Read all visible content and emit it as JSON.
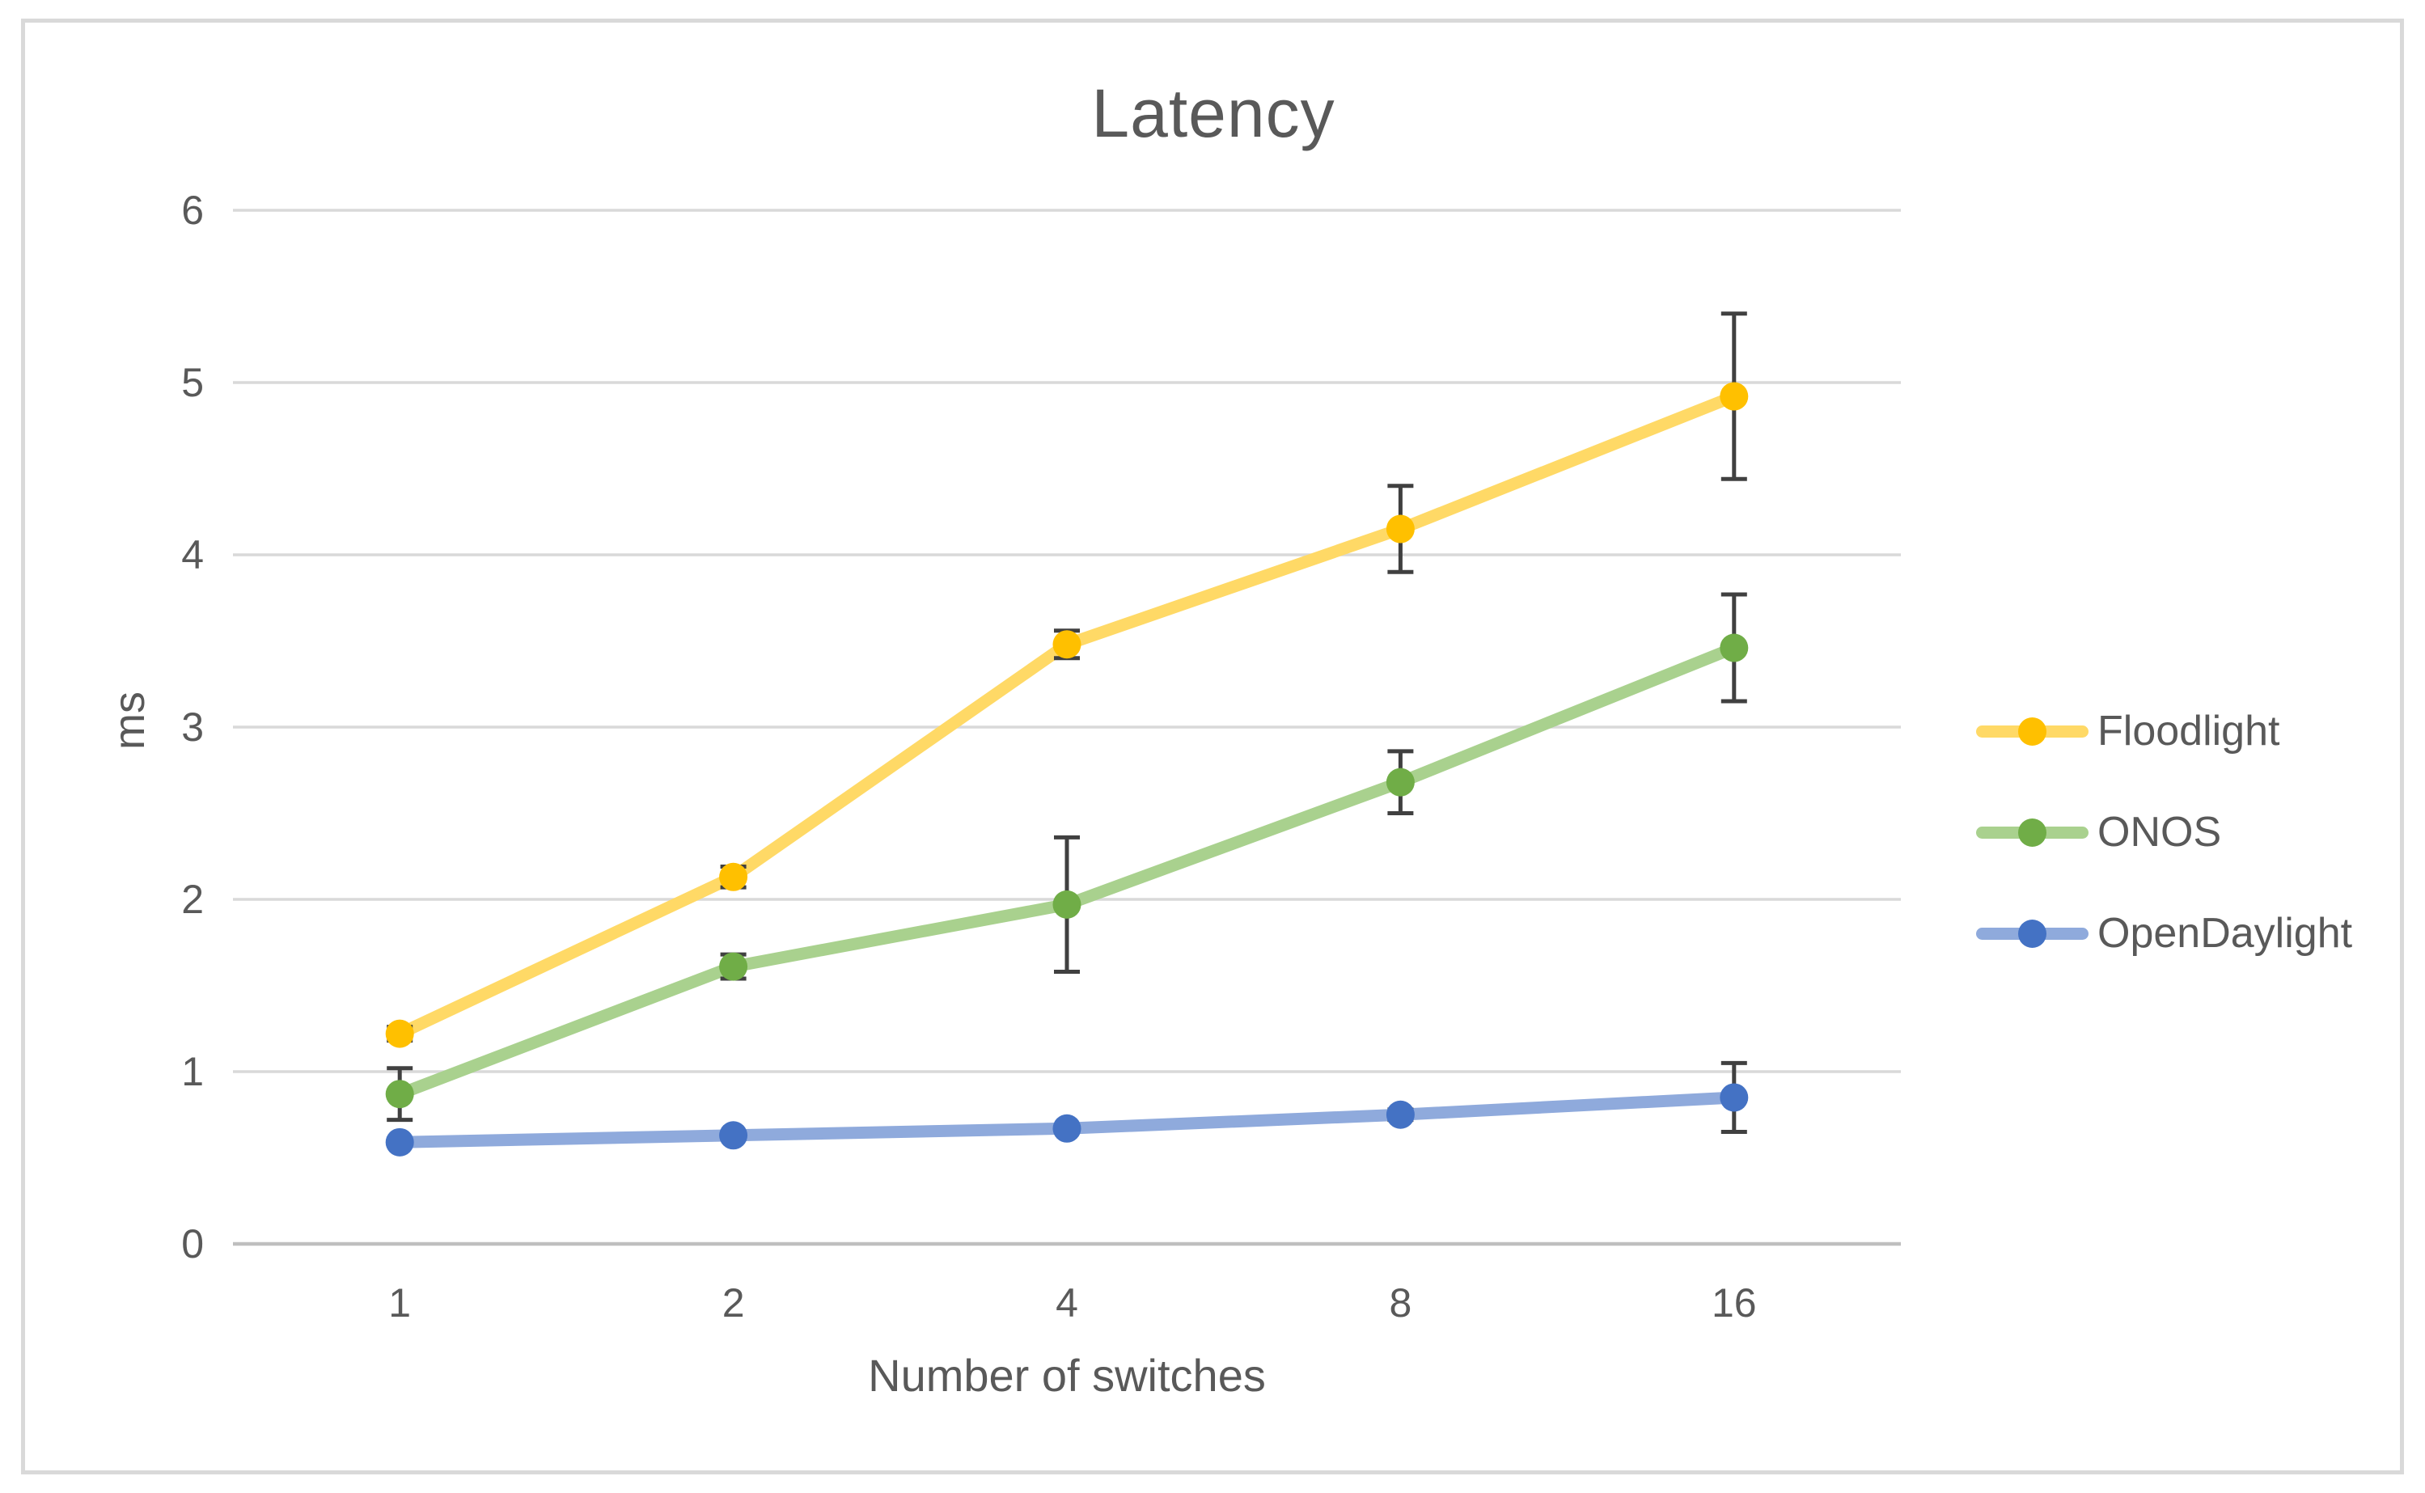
{
  "chart": {
    "title": "Latency",
    "x_axis_label": "Number of switches",
    "y_axis_label": "ms"
  },
  "chart_data": {
    "type": "line",
    "title": "Latency",
    "xlabel": "Number of switches",
    "ylabel": "ms",
    "categories": [
      "1",
      "2",
      "4",
      "8",
      "16"
    ],
    "y_ticks": [
      "0",
      "1",
      "2",
      "3",
      "4",
      "5",
      "6"
    ],
    "ylim": [
      0,
      6
    ],
    "grid": true,
    "legend_position": "right",
    "series": [
      {
        "name": "Floodlight",
        "values": [
          1.22,
          2.13,
          3.48,
          4.15,
          4.92
        ],
        "error_bars": [
          0.04,
          0.06,
          0.08,
          0.25,
          0.48
        ],
        "line_color": "#FFD966",
        "marker_color": "#FFC000"
      },
      {
        "name": "ONOS",
        "values": [
          0.87,
          1.61,
          1.97,
          2.68,
          3.46
        ],
        "error_bars": [
          0.15,
          0.07,
          0.39,
          0.18,
          0.31
        ],
        "line_color": "#A9D18E",
        "marker_color": "#70AD47"
      },
      {
        "name": "OpenDaylight",
        "values": [
          0.59,
          0.63,
          0.67,
          0.75,
          0.85
        ],
        "error_bars": [
          0.02,
          0.02,
          0.02,
          0.03,
          0.2
        ],
        "line_color": "#8FAADC",
        "marker_color": "#4472C4"
      }
    ],
    "colors": {
      "gridline": "#D9D9D9",
      "axis_line": "#BFBFBF",
      "error_bar": "#404040",
      "text": "#595959",
      "frame_border": "#D9D9D9"
    }
  }
}
